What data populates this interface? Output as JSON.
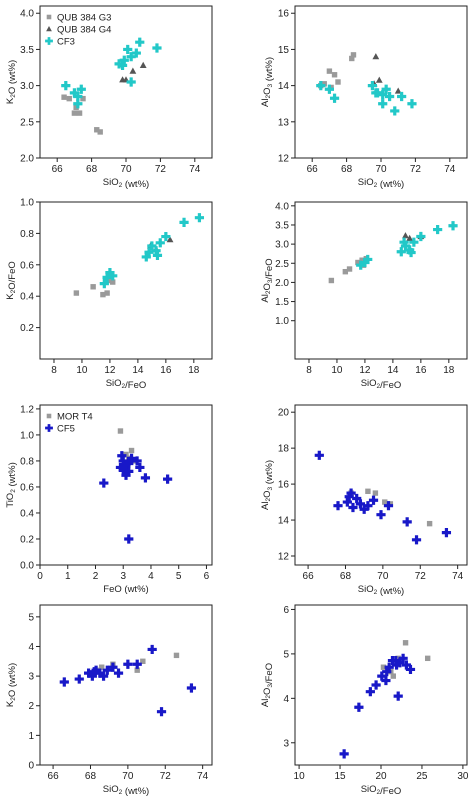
{
  "colors": {
    "gray": "#9a9a9a",
    "dark": "#555555",
    "cyan": "#22c8c8",
    "blue": "#1818c8",
    "axis": "#222222"
  },
  "chart_data": [
    {
      "id": "p1",
      "type": "scatter",
      "xlabel": "SiO₂ (wt%)",
      "ylabel": "K₂O (wt%)",
      "xlim": [
        65,
        75
      ],
      "ylim": [
        2.0,
        4.1
      ],
      "xticks": [
        66,
        68,
        70,
        72,
        74
      ],
      "yticks": [
        2.0,
        2.5,
        3.0,
        3.5,
        4.0
      ],
      "ytick_decimals": 1,
      "legend": {
        "placement": "top-left",
        "entries": [
          {
            "label": "QUB 384 G3",
            "marker": "square",
            "color": "gray"
          },
          {
            "label": "QUB 384 G4",
            "marker": "triangle",
            "color": "dark"
          },
          {
            "label": "CF3",
            "marker": "plus",
            "color": "cyan"
          }
        ]
      },
      "series": [
        {
          "marker": "square",
          "color": "gray",
          "points": [
            [
              66.4,
              2.84
            ],
            [
              66.7,
              2.82
            ],
            [
              67.0,
              2.62
            ],
            [
              67.3,
              2.62
            ],
            [
              67.1,
              2.7
            ],
            [
              67.5,
              2.82
            ],
            [
              68.3,
              2.39
            ],
            [
              68.5,
              2.36
            ]
          ]
        },
        {
          "marker": "triangle",
          "color": "dark",
          "points": [
            [
              69.8,
              3.08
            ],
            [
              70.0,
              3.08
            ],
            [
              70.4,
              3.2
            ],
            [
              71.0,
              3.28
            ]
          ]
        },
        {
          "marker": "plus",
          "color": "cyan",
          "points": [
            [
              66.5,
              3.0
            ],
            [
              67.0,
              2.9
            ],
            [
              67.2,
              2.75
            ],
            [
              67.4,
              2.95
            ],
            [
              67.2,
              2.85
            ],
            [
              69.6,
              3.3
            ],
            [
              69.9,
              3.35
            ],
            [
              70.1,
              3.5
            ],
            [
              70.3,
              3.4
            ],
            [
              70.6,
              3.45
            ],
            [
              70.8,
              3.6
            ],
            [
              71.8,
              3.52
            ],
            [
              70.3,
              3.05
            ],
            [
              69.8,
              3.28
            ]
          ]
        }
      ]
    },
    {
      "id": "p2",
      "type": "scatter",
      "xlabel": "SiO₂ (wt%)",
      "ylabel": "Al₂O₃ (wt%)",
      "xlim": [
        65,
        75
      ],
      "ylim": [
        12,
        16.2
      ],
      "xticks": [
        66,
        68,
        70,
        72,
        74
      ],
      "yticks": [
        12,
        13,
        14,
        15,
        16
      ],
      "ytick_decimals": 0,
      "series": [
        {
          "marker": "square",
          "color": "gray",
          "points": [
            [
              66.5,
              14.0
            ],
            [
              66.7,
              14.05
            ],
            [
              67.0,
              14.4
            ],
            [
              67.3,
              14.3
            ],
            [
              67.5,
              14.1
            ],
            [
              68.3,
              14.75
            ],
            [
              68.4,
              14.85
            ],
            [
              67.1,
              13.95
            ]
          ]
        },
        {
          "marker": "triangle",
          "color": "dark",
          "points": [
            [
              69.7,
              14.8
            ],
            [
              69.6,
              14.05
            ],
            [
              69.9,
              14.15
            ],
            [
              71.0,
              13.85
            ]
          ]
        },
        {
          "marker": "plus",
          "color": "cyan",
          "points": [
            [
              66.5,
              14.0
            ],
            [
              67.0,
              13.9
            ],
            [
              67.3,
              13.65
            ],
            [
              69.5,
              14.0
            ],
            [
              69.8,
              13.8
            ],
            [
              70.1,
              13.75
            ],
            [
              70.3,
              13.9
            ],
            [
              70.5,
              13.7
            ],
            [
              70.1,
              13.5
            ],
            [
              70.8,
              13.3
            ],
            [
              71.2,
              13.7
            ],
            [
              71.8,
              13.5
            ],
            [
              69.7,
              13.8
            ]
          ]
        }
      ]
    },
    {
      "id": "p3",
      "type": "scatter",
      "xlabel": "SiO₂/FeO",
      "ylabel": "K₂O/FeO",
      "xlim": [
        7,
        19.3
      ],
      "ylim": [
        0,
        1.0
      ],
      "xticks": [
        8,
        10,
        12,
        14,
        16,
        18
      ],
      "yticks": [
        0.2,
        0.4,
        0.6,
        0.8,
        1.0
      ],
      "ytick_decimals": 1,
      "series": [
        {
          "marker": "square",
          "color": "gray",
          "points": [
            [
              9.6,
              0.42
            ],
            [
              10.8,
              0.46
            ],
            [
              11.5,
              0.41
            ],
            [
              11.8,
              0.42
            ],
            [
              12.2,
              0.49
            ],
            [
              11.9,
              0.5
            ]
          ]
        },
        {
          "marker": "triangle",
          "color": "dark",
          "points": [
            [
              14.9,
              0.72
            ],
            [
              15.3,
              0.7
            ],
            [
              16.3,
              0.76
            ]
          ]
        },
        {
          "marker": "plus",
          "color": "cyan",
          "points": [
            [
              11.6,
              0.48
            ],
            [
              11.8,
              0.52
            ],
            [
              12.0,
              0.55
            ],
            [
              12.2,
              0.53
            ],
            [
              14.8,
              0.68
            ],
            [
              15.0,
              0.72
            ],
            [
              15.3,
              0.69
            ],
            [
              15.6,
              0.74
            ],
            [
              15.4,
              0.66
            ],
            [
              16.0,
              0.78
            ],
            [
              17.3,
              0.87
            ],
            [
              18.4,
              0.9
            ],
            [
              14.6,
              0.65
            ]
          ]
        }
      ]
    },
    {
      "id": "p4",
      "type": "scatter",
      "xlabel": "SiO₂/FeO",
      "ylabel": "Al₂O₃/FeO",
      "xlim": [
        7,
        19.3
      ],
      "ylim": [
        0,
        4.1
      ],
      "xticks": [
        8,
        10,
        12,
        14,
        16,
        18
      ],
      "yticks": [
        1.0,
        1.5,
        2.0,
        2.5,
        3.0,
        3.5,
        4.0
      ],
      "ytick_decimals": 1,
      "series": [
        {
          "marker": "square",
          "color": "gray",
          "points": [
            [
              9.6,
              2.05
            ],
            [
              10.6,
              2.28
            ],
            [
              10.9,
              2.35
            ],
            [
              11.5,
              2.52
            ],
            [
              11.8,
              2.58
            ],
            [
              12.1,
              2.62
            ],
            [
              11.9,
              2.45
            ]
          ]
        },
        {
          "marker": "triangle",
          "color": "dark",
          "points": [
            [
              14.9,
              3.22
            ],
            [
              15.2,
              3.15
            ],
            [
              16.0,
              3.2
            ]
          ]
        },
        {
          "marker": "plus",
          "color": "cyan",
          "points": [
            [
              11.7,
              2.45
            ],
            [
              12.0,
              2.52
            ],
            [
              12.2,
              2.6
            ],
            [
              14.6,
              2.8
            ],
            [
              14.9,
              2.95
            ],
            [
              15.2,
              2.85
            ],
            [
              15.5,
              3.05
            ],
            [
              15.3,
              2.78
            ],
            [
              16.0,
              3.2
            ],
            [
              17.2,
              3.38
            ],
            [
              18.3,
              3.48
            ],
            [
              14.8,
              3.05
            ]
          ]
        }
      ]
    },
    {
      "id": "p5",
      "type": "scatter",
      "xlabel": "FeO (wt%)",
      "ylabel": "TiO₂ (wt%)",
      "xlim": [
        0,
        6.2
      ],
      "ylim": [
        0,
        1.23
      ],
      "xticks": [
        0,
        1,
        2,
        3,
        4,
        5,
        6
      ],
      "yticks": [
        0.0,
        0.2,
        0.4,
        0.6,
        0.8,
        1.0,
        1.2
      ],
      "ytick_decimals": 1,
      "legend": {
        "placement": "top-left",
        "entries": [
          {
            "label": "MOR T4",
            "marker": "square",
            "color": "gray"
          },
          {
            "label": "CF5",
            "marker": "plus",
            "color": "blue"
          }
        ]
      },
      "series": [
        {
          "marker": "square",
          "color": "gray",
          "points": [
            [
              2.9,
              1.03
            ],
            [
              3.1,
              0.85
            ],
            [
              3.2,
              0.82
            ],
            [
              3.3,
              0.88
            ],
            [
              3.0,
              0.76
            ],
            [
              3.4,
              0.8
            ]
          ]
        },
        {
          "marker": "plus",
          "color": "blue",
          "points": [
            [
              2.3,
              0.63
            ],
            [
              2.9,
              0.75
            ],
            [
              3.0,
              0.8
            ],
            [
              3.1,
              0.77
            ],
            [
              3.2,
              0.78
            ],
            [
              3.0,
              0.73
            ],
            [
              3.3,
              0.82
            ],
            [
              3.5,
              0.8
            ],
            [
              3.2,
              0.72
            ],
            [
              3.6,
              0.75
            ],
            [
              3.1,
              0.69
            ],
            [
              3.8,
              0.67
            ],
            [
              4.6,
              0.66
            ],
            [
              3.2,
              0.2
            ],
            [
              2.95,
              0.84
            ]
          ]
        }
      ]
    },
    {
      "id": "p6",
      "type": "scatter",
      "xlabel": "SiO₂ (wt%)",
      "ylabel": "Al₂O₃ (wt%)",
      "xlim": [
        65.3,
        74.5
      ],
      "ylim": [
        11.5,
        20.4
      ],
      "xticks": [
        66,
        68,
        70,
        72,
        74
      ],
      "yticks": [
        12,
        14,
        16,
        18,
        20
      ],
      "ytick_decimals": 0,
      "series": [
        {
          "marker": "square",
          "color": "gray",
          "points": [
            [
              68.3,
              15.5
            ],
            [
              69.2,
              15.6
            ],
            [
              69.6,
              15.5
            ],
            [
              70.1,
              15.0
            ],
            [
              70.4,
              14.9
            ],
            [
              72.5,
              13.8
            ]
          ]
        },
        {
          "marker": "plus",
          "color": "blue",
          "points": [
            [
              66.6,
              17.6
            ],
            [
              67.6,
              14.8
            ],
            [
              68.1,
              15.0
            ],
            [
              68.3,
              15.5
            ],
            [
              68.4,
              14.7
            ],
            [
              68.6,
              15.2
            ],
            [
              68.8,
              14.9
            ],
            [
              69.0,
              14.6
            ],
            [
              69.2,
              14.8
            ],
            [
              69.5,
              15.1
            ],
            [
              69.9,
              14.3
            ],
            [
              70.3,
              14.8
            ],
            [
              71.3,
              13.9
            ],
            [
              71.8,
              12.9
            ],
            [
              73.4,
              13.3
            ],
            [
              68.2,
              15.3
            ]
          ]
        }
      ]
    },
    {
      "id": "p7",
      "type": "scatter",
      "xlabel": "SiO₂ (wt%)",
      "ylabel": "K₂O (wt%)",
      "xlim": [
        65.3,
        74.5
      ],
      "ylim": [
        0,
        5.4
      ],
      "xticks": [
        66,
        68,
        70,
        72,
        74
      ],
      "yticks": [
        0,
        1,
        2,
        3,
        4,
        5
      ],
      "ytick_decimals": 0,
      "series": [
        {
          "marker": "square",
          "color": "gray",
          "points": [
            [
              68.3,
              3.2
            ],
            [
              68.6,
              3.3
            ],
            [
              69.2,
              3.4
            ],
            [
              70.5,
              3.2
            ],
            [
              70.8,
              3.5
            ],
            [
              72.6,
              3.7
            ]
          ]
        },
        {
          "marker": "plus",
          "color": "blue",
          "points": [
            [
              66.6,
              2.8
            ],
            [
              67.4,
              2.9
            ],
            [
              67.9,
              3.1
            ],
            [
              68.1,
              3.0
            ],
            [
              68.3,
              3.2
            ],
            [
              68.5,
              3.1
            ],
            [
              68.7,
              3.0
            ],
            [
              68.9,
              3.2
            ],
            [
              69.2,
              3.3
            ],
            [
              69.5,
              3.1
            ],
            [
              70.0,
              3.4
            ],
            [
              70.5,
              3.4
            ],
            [
              71.3,
              3.9
            ],
            [
              71.8,
              1.8
            ],
            [
              73.4,
              2.6
            ],
            [
              68.2,
              3.15
            ]
          ]
        }
      ]
    },
    {
      "id": "p8",
      "type": "scatter",
      "xlabel": "SiO₂/FeO",
      "ylabel": "Al₂O₃/FeO",
      "xlim": [
        9.5,
        30.5
      ],
      "ylim": [
        2.5,
        6.1
      ],
      "xticks": [
        10,
        15,
        20,
        25,
        30
      ],
      "yticks": [
        3,
        4,
        5,
        6
      ],
      "ytick_decimals": 0,
      "series": [
        {
          "marker": "square",
          "color": "gray",
          "points": [
            [
              20.3,
              4.7
            ],
            [
              21.2,
              4.6
            ],
            [
              22.1,
              4.9
            ],
            [
              23.0,
              5.25
            ],
            [
              25.7,
              4.9
            ],
            [
              21.5,
              4.5
            ]
          ]
        },
        {
          "marker": "plus",
          "color": "blue",
          "points": [
            [
              15.5,
              2.75
            ],
            [
              17.3,
              3.8
            ],
            [
              18.7,
              4.15
            ],
            [
              19.4,
              4.3
            ],
            [
              20.1,
              4.5
            ],
            [
              20.6,
              4.4
            ],
            [
              21.0,
              4.7
            ],
            [
              21.4,
              4.85
            ],
            [
              21.9,
              4.75
            ],
            [
              22.3,
              4.8
            ],
            [
              22.7,
              4.9
            ],
            [
              23.1,
              4.75
            ],
            [
              22.1,
              4.05
            ],
            [
              23.6,
              4.65
            ],
            [
              20.7,
              4.6
            ],
            [
              21.8,
              4.85
            ]
          ]
        }
      ]
    }
  ]
}
